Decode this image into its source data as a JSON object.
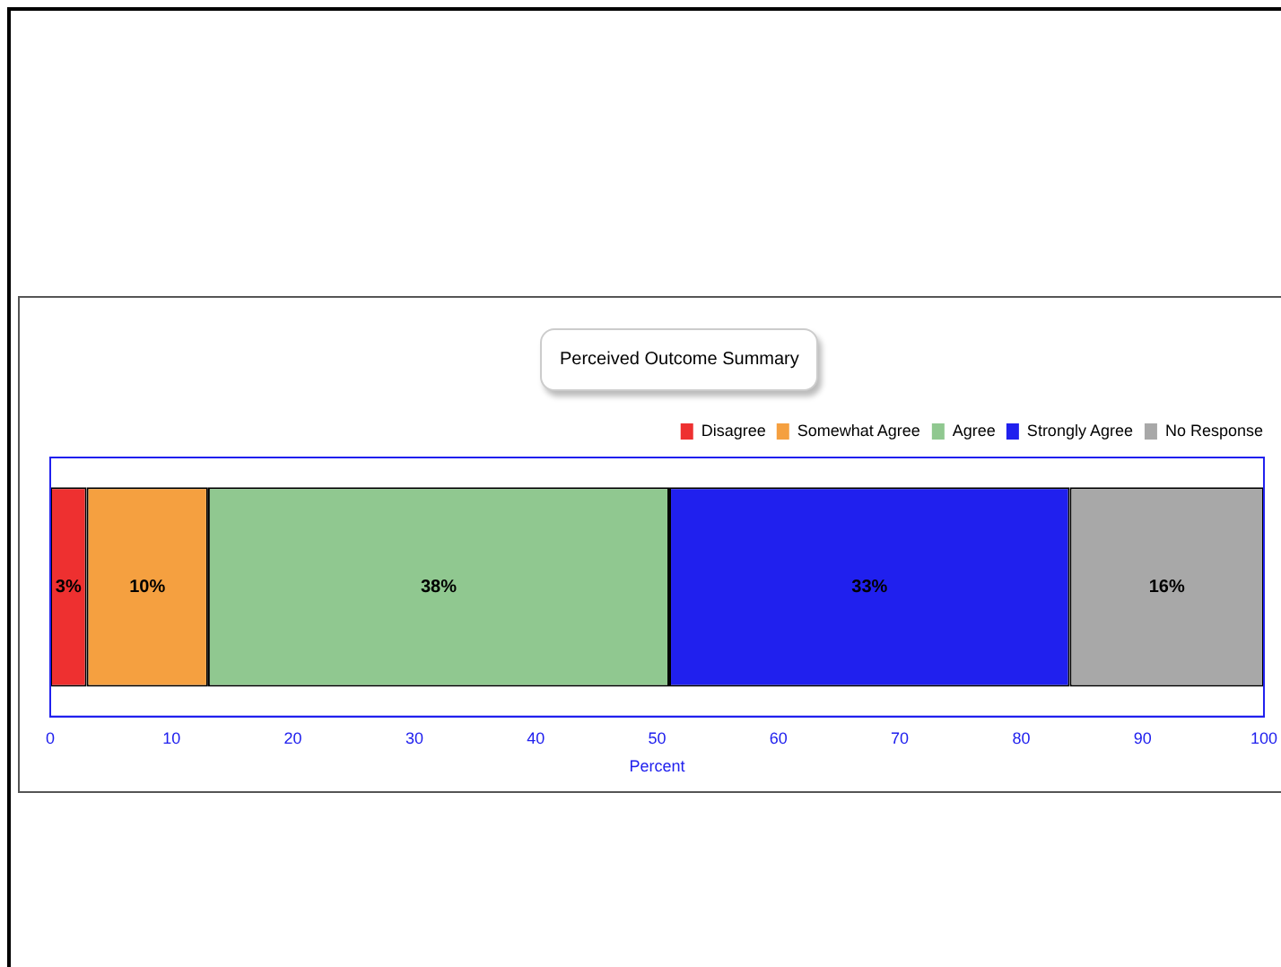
{
  "chart_data": {
    "type": "bar",
    "orientation": "horizontal",
    "stacked": true,
    "title": "Perceived Outcome Summary",
    "xlabel": "Percent",
    "categories": [
      null
    ],
    "series": [
      {
        "name": "Disagree",
        "color": "#ee3030",
        "values": [
          3
        ],
        "value_labels": [
          "3%"
        ]
      },
      {
        "name": "Somewhat Agree",
        "color": "#f5a040",
        "values": [
          10
        ],
        "value_labels": [
          "10%"
        ]
      },
      {
        "name": "Agree",
        "color": "#90c890",
        "values": [
          38
        ],
        "value_labels": [
          "38%"
        ]
      },
      {
        "name": "Strongly Agree",
        "color": "#2020ee",
        "values": [
          33
        ],
        "value_labels": [
          "33%"
        ]
      },
      {
        "name": "No Response",
        "color": "#a8a8a8",
        "values": [
          16
        ],
        "value_labels": [
          "16%"
        ]
      }
    ],
    "xlim": [
      0,
      100
    ],
    "xticks": [
      0,
      10,
      20,
      30,
      40,
      50,
      60,
      70,
      80,
      90,
      100
    ],
    "grid": false,
    "legend": "top right"
  }
}
